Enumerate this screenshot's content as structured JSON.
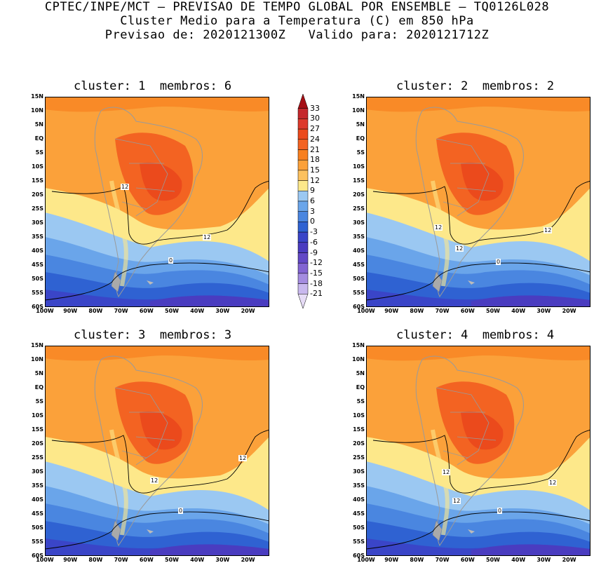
{
  "header": {
    "line1": "CPTEC/INPE/MCT – PREVISAO DE TEMPO GLOBAL POR ENSEMBLE – TQ0126L028",
    "line2": "Cluster Medio para a Temperatura (C) em 850 hPa",
    "line3": "Previsao de: 2020121300Z   Valido para: 2020121712Z"
  },
  "panels": [
    {
      "title": "cluster: 1  membros: 6",
      "contours": [
        "12",
        "12",
        "0"
      ]
    },
    {
      "title": "cluster: 2  membros: 2",
      "contours": [
        "12",
        "12",
        "12",
        "0"
      ]
    },
    {
      "title": "cluster: 3  membros: 3",
      "contours": [
        "12",
        "12",
        "0"
      ]
    },
    {
      "title": "cluster: 4  membros: 4",
      "contours": [
        "12",
        "12",
        "12",
        "0"
      ]
    }
  ],
  "axes": {
    "lat_ticks": [
      "15N",
      "10N",
      "5N",
      "EQ",
      "5S",
      "10S",
      "15S",
      "20S",
      "25S",
      "30S",
      "35S",
      "40S",
      "45S",
      "50S",
      "55S",
      "60S"
    ],
    "lon_ticks": [
      "100W",
      "90W",
      "80W",
      "70W",
      "60W",
      "50W",
      "40W",
      "30W",
      "20W"
    ]
  },
  "colorbar": {
    "labels": [
      "33",
      "30",
      "27",
      "24",
      "21",
      "18",
      "15",
      "12",
      "9",
      "6",
      "3",
      "0",
      "-3",
      "-6",
      "-9",
      "-12",
      "-15",
      "-18",
      "-21"
    ],
    "colors": [
      "#a50f15",
      "#c5282c",
      "#dd3a2c",
      "#eb4a1c",
      "#f36322",
      "#f88020",
      "#fba13a",
      "#fcc15e",
      "#fde88a",
      "#9bc8f2",
      "#6aa5ea",
      "#4a86e0",
      "#2f62d2",
      "#3a45c8",
      "#4a3cc0",
      "#6248c6",
      "#8264d2",
      "#a48ce0",
      "#c8b8ee",
      "#e6dcf6"
    ]
  }
}
